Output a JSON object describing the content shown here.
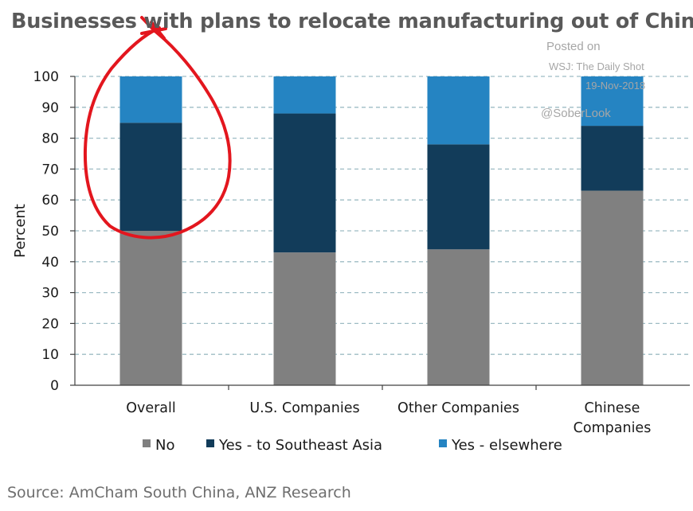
{
  "title": "Businesses with plans to relocate manufacturing out of China",
  "watermark": {
    "line1": "Posted on",
    "line2": "WSJ: The Daily Shot",
    "line3": "19-Nov-2018",
    "line4": "@SoberLook"
  },
  "source": "Source: AmCham South China, ANZ Research",
  "colors": {
    "no": "#808080",
    "se_asia": "#123c5a",
    "elsewhere": "#2584c2",
    "annotation": "#e3161e"
  },
  "chart_data": {
    "type": "bar",
    "stacked": true,
    "ylabel": "Percent",
    "xlabel": "",
    "ylim": [
      0,
      100
    ],
    "yticks": [
      0,
      10,
      20,
      30,
      40,
      50,
      60,
      70,
      80,
      90,
      100
    ],
    "grid": "horizontal-dashed",
    "legend_position": "bottom",
    "categories": [
      [
        "Overall"
      ],
      [
        "U.S. Companies"
      ],
      [
        "Other Companies"
      ],
      [
        "Chinese",
        "Companies"
      ]
    ],
    "series": [
      {
        "name": "No",
        "values": [
          50,
          43,
          44,
          63
        ]
      },
      {
        "name": "Yes - to Southeast Asia",
        "values": [
          35,
          45,
          34,
          21
        ]
      },
      {
        "name": "Yes - elsewhere",
        "values": [
          15,
          12,
          22,
          16
        ]
      }
    ]
  }
}
